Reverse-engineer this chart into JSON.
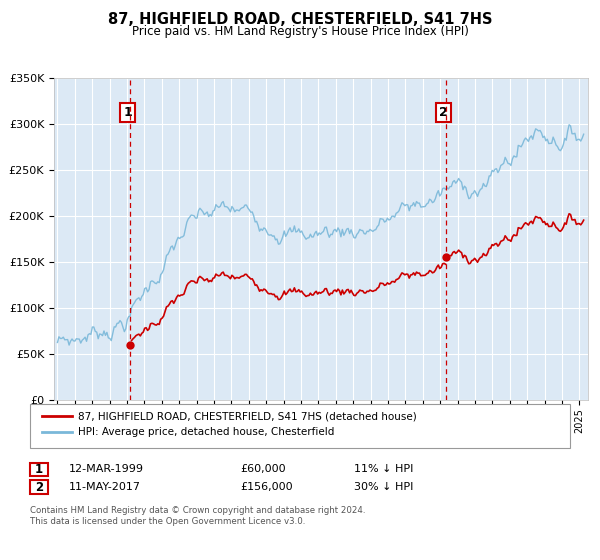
{
  "title": "87, HIGHFIELD ROAD, CHESTERFIELD, S41 7HS",
  "subtitle": "Price paid vs. HM Land Registry's House Price Index (HPI)",
  "background_color": "#ffffff",
  "plot_bg_color": "#dce9f5",
  "grid_color": "#ffffff",
  "hpi_color": "#7ab8d9",
  "price_color": "#cc0000",
  "sale1_date": 1999.19,
  "sale1_price": 60000,
  "sale2_date": 2017.36,
  "sale2_price": 156000,
  "vline_color": "#cc0000",
  "ylim": [
    0,
    350000
  ],
  "xlim": [
    1994.8,
    2025.5
  ],
  "legend_label1": "87, HIGHFIELD ROAD, CHESTERFIELD, S41 7HS (detached house)",
  "legend_label2": "HPI: Average price, detached house, Chesterfield",
  "annotation1_label": "1",
  "annotation2_label": "2",
  "table_row1": [
    "1",
    "12-MAR-1999",
    "£60,000",
    "11% ↓ HPI"
  ],
  "table_row2": [
    "2",
    "11-MAY-2017",
    "£156,000",
    "30% ↓ HPI"
  ],
  "footer": "Contains HM Land Registry data © Crown copyright and database right 2024.\nThis data is licensed under the Open Government Licence v3.0.",
  "ytick_labels": [
    "£0",
    "£50K",
    "£100K",
    "£150K",
    "£200K",
    "£250K",
    "£300K",
    "£350K"
  ],
  "ytick_values": [
    0,
    50000,
    100000,
    150000,
    200000,
    250000,
    300000,
    350000
  ]
}
